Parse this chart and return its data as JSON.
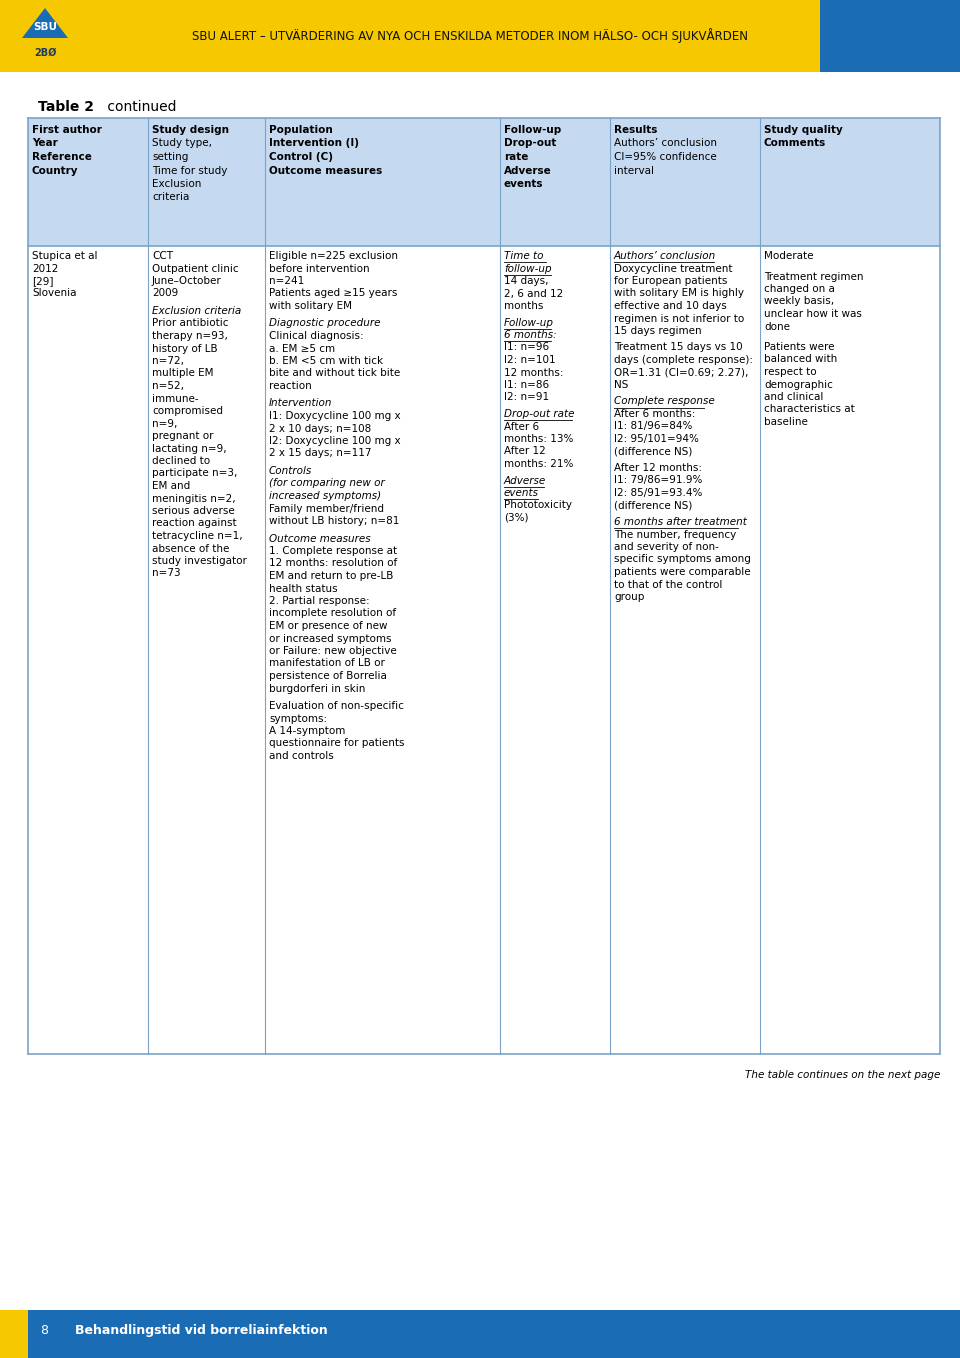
{
  "header_bg": "#F5C800",
  "header_text_color": "#1A3A6B",
  "header_title": "SBU ALERT – UTVÄRDERING AV NYA OCH ENSKILDA METODER INOM HÄLSO- OCH SJUKVÅRDEN",
  "header_right_color": "#1A6DB5",
  "footer_bg": "#1A6DB5",
  "footer_yellow": "#F5C800",
  "footer_text": "Behandlingstid vid borreliainfektion",
  "footer_page": "8",
  "table_title": "Table 2",
  "table_title_suffix": " continued",
  "table_header_bg": "#C5D9F1",
  "table_border_color": "#7BA3C8",
  "page_note": "The table continues on the next page"
}
